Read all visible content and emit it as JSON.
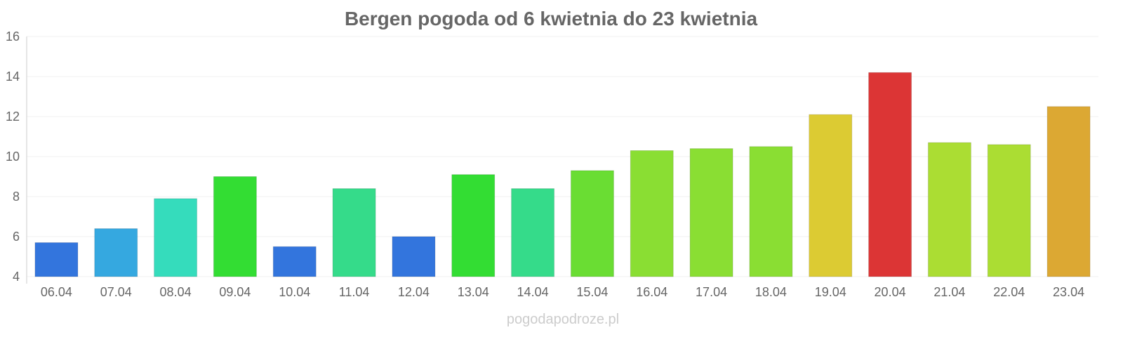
{
  "chart_data": {
    "type": "bar",
    "title": "Bergen pogoda od 6 kwietnia do 23 kwietnia",
    "categories": [
      "06.04",
      "07.04",
      "08.04",
      "09.04",
      "10.04",
      "11.04",
      "12.04",
      "13.04",
      "14.04",
      "15.04",
      "16.04",
      "17.04",
      "18.04",
      "19.04",
      "20.04",
      "21.04",
      "22.04",
      "23.04"
    ],
    "values": [
      5.7,
      6.4,
      7.9,
      9.0,
      5.5,
      8.4,
      6.0,
      9.1,
      8.4,
      9.3,
      10.3,
      10.4,
      10.5,
      12.1,
      14.2,
      10.7,
      10.6,
      12.5
    ],
    "colors": [
      "#3375dd",
      "#35a8e0",
      "#35dcbc",
      "#33dd33",
      "#3375dd",
      "#35db8a",
      "#3375dd",
      "#33dd33",
      "#35db8a",
      "#6add33",
      "#8ade33",
      "#8ade33",
      "#8ade33",
      "#dccb33",
      "#dc3535",
      "#abdd33",
      "#abdd33",
      "#dca833"
    ],
    "ylim": [
      4,
      16
    ],
    "yticks": [
      4,
      6,
      8,
      10,
      12,
      14,
      16
    ],
    "grid": true,
    "xlabel": "",
    "ylabel": ""
  },
  "credit": "pogodapodroze.pl"
}
